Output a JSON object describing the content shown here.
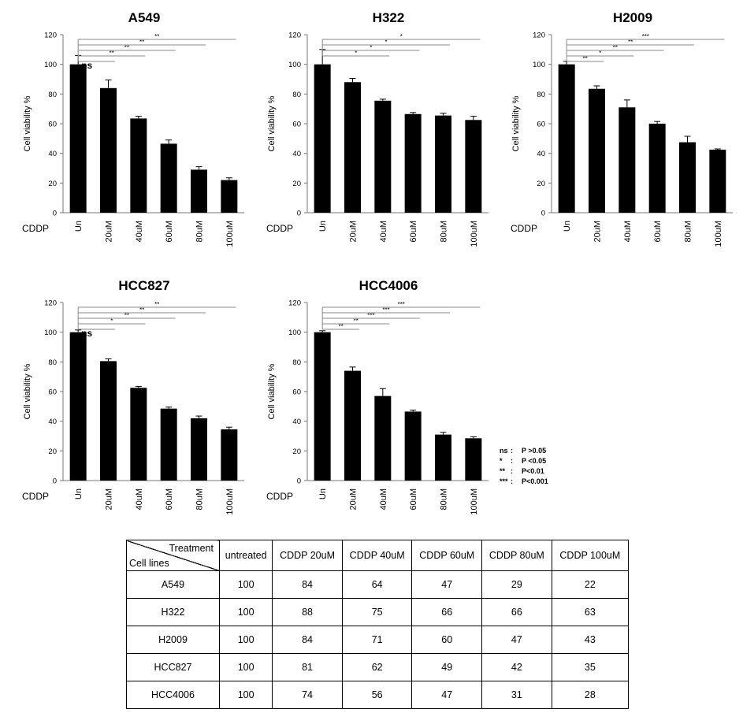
{
  "chart_data": [
    {
      "type": "bar",
      "title": "A549",
      "ylabel": "Cell viability %",
      "xlabel": "CDDP",
      "categories": [
        "Un",
        "20uM",
        "40uM",
        "60uM",
        "80uM",
        "100uM"
      ],
      "values": [
        100,
        84,
        63.5,
        46.5,
        29,
        22
      ],
      "errors": [
        6,
        5.5,
        1.5,
        2.5,
        2,
        1.5
      ],
      "ylim": [
        0,
        120
      ],
      "yticks": [
        0,
        20,
        40,
        60,
        80,
        100,
        120
      ],
      "significance": [
        {
          "label": "ns",
          "to": "20uM"
        },
        {
          "label": "**",
          "to": "40uM"
        },
        {
          "label": "**",
          "to": "60uM"
        },
        {
          "label": "**",
          "to": "80uM"
        },
        {
          "label": "**",
          "to": "100uM"
        }
      ]
    },
    {
      "type": "bar",
      "title": "H322",
      "ylabel": "Cell viability %",
      "xlabel": "CDDP",
      "categories": [
        "Un",
        "20uM",
        "40uM",
        "60uM",
        "80uM",
        "100uM"
      ],
      "values": [
        100,
        88,
        75.5,
        66.5,
        65.5,
        62.5
      ],
      "errors": [
        10,
        2.5,
        1,
        1,
        1.5,
        2.5
      ],
      "ylim": [
        0,
        120
      ],
      "yticks": [
        0,
        20,
        40,
        60,
        80,
        100,
        120
      ],
      "significance": [
        {
          "label": "*",
          "to": "40uM"
        },
        {
          "label": "*",
          "to": "60uM"
        },
        {
          "label": "*",
          "to": "80uM"
        },
        {
          "label": "*",
          "to": "100uM"
        }
      ]
    },
    {
      "type": "bar",
      "title": "H2009",
      "ylabel": "Cell viability %",
      "xlabel": "CDDP",
      "categories": [
        "Un",
        "20uM",
        "40uM",
        "60uM",
        "80uM",
        "100uM"
      ],
      "values": [
        100,
        83.5,
        71,
        60,
        47.5,
        42.5
      ],
      "errors": [
        2,
        2,
        5,
        1.5,
        4,
        0.5
      ],
      "ylim": [
        0,
        120
      ],
      "yticks": [
        0,
        20,
        40,
        60,
        80,
        100,
        120
      ],
      "significance": [
        {
          "label": "**",
          "to": "20uM"
        },
        {
          "label": "*",
          "to": "40uM"
        },
        {
          "label": "**",
          "to": "60uM"
        },
        {
          "label": "**",
          "to": "80uM"
        },
        {
          "label": "***",
          "to": "100uM"
        }
      ]
    },
    {
      "type": "bar",
      "title": "HCC827",
      "ylabel": "Cell viability %",
      "xlabel": "CDDP",
      "categories": [
        "Un",
        "20uM",
        "40uM",
        "60uM",
        "80uM",
        "100uM"
      ],
      "values": [
        100,
        80.5,
        62.5,
        48.5,
        42,
        34.5
      ],
      "errors": [
        1.5,
        1.5,
        1,
        1,
        1.5,
        1.5
      ],
      "ylim": [
        0,
        120
      ],
      "yticks": [
        0,
        20,
        40,
        60,
        80,
        100,
        120
      ],
      "significance": [
        {
          "label": "ns",
          "to": "20uM"
        },
        {
          "label": "*",
          "to": "40uM"
        },
        {
          "label": "**",
          "to": "60uM"
        },
        {
          "label": "**",
          "to": "80uM"
        },
        {
          "label": "**",
          "to": "100uM"
        }
      ]
    },
    {
      "type": "bar",
      "title": "HCC4006",
      "ylabel": "Cell viability %",
      "xlabel": "CDDP",
      "categories": [
        "Un",
        "20uM",
        "40uM",
        "60uM",
        "80uM",
        "100uM"
      ],
      "values": [
        100,
        74,
        57,
        46.5,
        31,
        28.5
      ],
      "errors": [
        1,
        2.5,
        5,
        1,
        1.5,
        1
      ],
      "ylim": [
        0,
        120
      ],
      "yticks": [
        0,
        20,
        40,
        60,
        80,
        100,
        120
      ],
      "significance": [
        {
          "label": "**",
          "to": "20uM"
        },
        {
          "label": "**",
          "to": "40uM"
        },
        {
          "label": "***",
          "to": "60uM"
        },
        {
          "label": "***",
          "to": "80uM"
        },
        {
          "label": "***",
          "to": "100uM"
        }
      ]
    },
    {
      "type": "table",
      "corner": {
        "top": "Treatment",
        "bottom": "Cell lines"
      },
      "columns": [
        "untreated",
        "CDDP 20uM",
        "CDDP 40uM",
        "CDDP 60uM",
        "CDDP 80uM",
        "CDDP 100uM"
      ],
      "rows": [
        {
          "label": "A549",
          "values": [
            100,
            84,
            64,
            47,
            29,
            22
          ]
        },
        {
          "label": "H322",
          "values": [
            100,
            88,
            75,
            66,
            66,
            63
          ]
        },
        {
          "label": "H2009",
          "values": [
            100,
            84,
            71,
            60,
            47,
            43
          ]
        },
        {
          "label": "HCC827",
          "values": [
            100,
            81,
            62,
            49,
            42,
            35
          ]
        },
        {
          "label": "HCC4006",
          "values": [
            100,
            74,
            56,
            47,
            31,
            28
          ]
        }
      ]
    }
  ],
  "legend": [
    {
      "symbol": "ns",
      "text": "P >0.05"
    },
    {
      "symbol": "*",
      "text": "P <0.05"
    },
    {
      "symbol": "**",
      "text": "P<0.01"
    },
    {
      "symbol": "***",
      "text": "P<0.001"
    }
  ]
}
